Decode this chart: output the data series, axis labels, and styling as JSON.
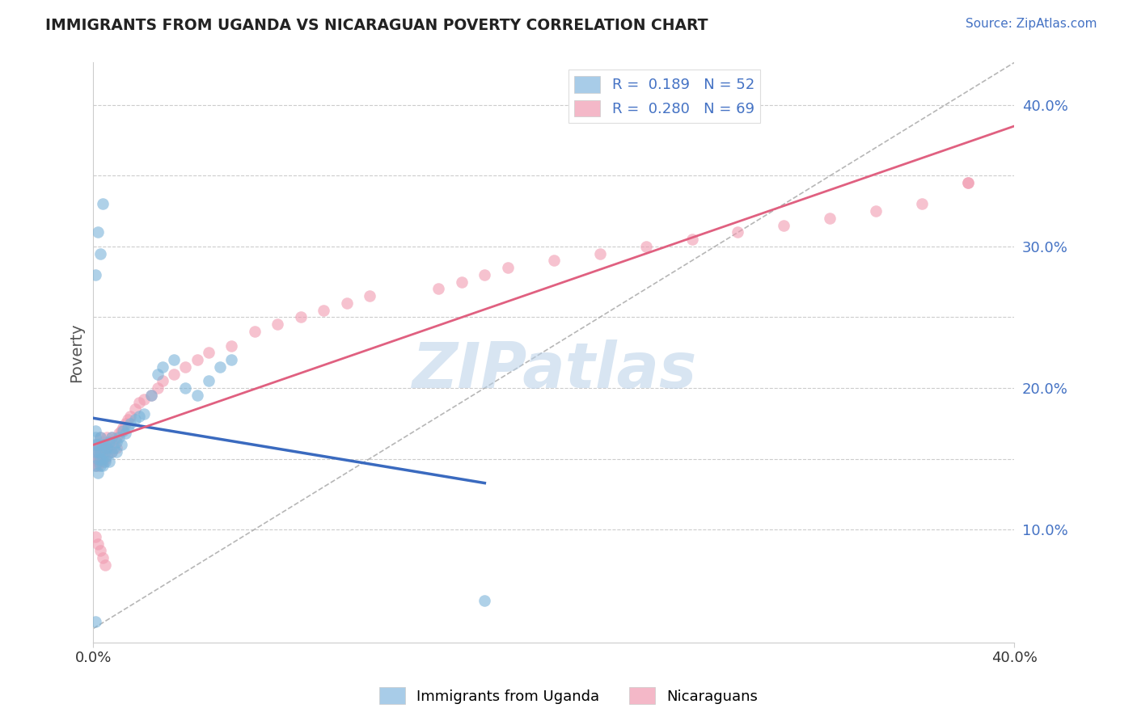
{
  "title": "IMMIGRANTS FROM UGANDA VS NICARAGUAN POVERTY CORRELATION CHART",
  "source": "Source: ZipAtlas.com",
  "ylabel": "Poverty",
  "x_range": [
    0.0,
    0.4
  ],
  "y_range": [
    0.02,
    0.43
  ],
  "watermark": "ZIPatlas",
  "legend_line1": "R =  0.189   N = 52",
  "legend_line2": "R =  0.280   N = 69",
  "series1_color": "#7ab3d9",
  "series2_color": "#f09ab0",
  "series1_line_color": "#3a6abf",
  "series2_line_color": "#e06080",
  "series1_legend_color": "#a8cce8",
  "series2_legend_color": "#f4b8c8",
  "diagonal_line_color": "#aaaaaa",
  "grid_color": "#cccccc",
  "title_color": "#222222",
  "axis_label_color": "#4472c4",
  "background_color": "#ffffff",
  "legend_text_color": "#4472c4",
  "watermark_color": "#b8d0e8",
  "series1_N": 52,
  "series2_N": 69,
  "series1_R": 0.189,
  "series2_R": 0.28,
  "uganda_x": [
    0.001,
    0.001,
    0.001,
    0.001,
    0.001,
    0.002,
    0.002,
    0.002,
    0.002,
    0.003,
    0.003,
    0.003,
    0.003,
    0.004,
    0.004,
    0.004,
    0.005,
    0.005,
    0.005,
    0.006,
    0.006,
    0.007,
    0.007,
    0.008,
    0.008,
    0.009,
    0.01,
    0.01,
    0.011,
    0.012,
    0.013,
    0.014,
    0.015,
    0.016,
    0.018,
    0.02,
    0.022,
    0.025,
    0.028,
    0.03,
    0.035,
    0.04,
    0.045,
    0.05,
    0.055,
    0.06,
    0.001,
    0.002,
    0.003,
    0.004,
    0.17,
    0.001
  ],
  "uganda_y": [
    0.155,
    0.16,
    0.165,
    0.17,
    0.145,
    0.155,
    0.15,
    0.16,
    0.14,
    0.15,
    0.145,
    0.155,
    0.165,
    0.15,
    0.16,
    0.145,
    0.155,
    0.16,
    0.148,
    0.152,
    0.158,
    0.148,
    0.162,
    0.155,
    0.165,
    0.158,
    0.155,
    0.162,
    0.165,
    0.16,
    0.17,
    0.168,
    0.172,
    0.175,
    0.178,
    0.18,
    0.182,
    0.195,
    0.21,
    0.215,
    0.22,
    0.2,
    0.195,
    0.205,
    0.215,
    0.22,
    0.28,
    0.31,
    0.295,
    0.33,
    0.05,
    0.035
  ],
  "nicaraguan_x": [
    0.001,
    0.001,
    0.001,
    0.001,
    0.002,
    0.002,
    0.002,
    0.002,
    0.003,
    0.003,
    0.003,
    0.004,
    0.004,
    0.004,
    0.005,
    0.005,
    0.005,
    0.006,
    0.006,
    0.007,
    0.007,
    0.008,
    0.008,
    0.009,
    0.01,
    0.01,
    0.011,
    0.012,
    0.013,
    0.014,
    0.015,
    0.016,
    0.018,
    0.02,
    0.022,
    0.025,
    0.028,
    0.03,
    0.035,
    0.04,
    0.045,
    0.05,
    0.06,
    0.07,
    0.08,
    0.09,
    0.1,
    0.11,
    0.12,
    0.15,
    0.16,
    0.17,
    0.18,
    0.2,
    0.22,
    0.24,
    0.26,
    0.28,
    0.3,
    0.32,
    0.34,
    0.36,
    0.38,
    0.001,
    0.002,
    0.003,
    0.004,
    0.005,
    0.38
  ],
  "nicaraguan_y": [
    0.15,
    0.145,
    0.155,
    0.16,
    0.148,
    0.152,
    0.158,
    0.145,
    0.155,
    0.15,
    0.165,
    0.148,
    0.158,
    0.162,
    0.155,
    0.16,
    0.15,
    0.158,
    0.165,
    0.155,
    0.162,
    0.155,
    0.165,
    0.16,
    0.158,
    0.165,
    0.168,
    0.17,
    0.172,
    0.175,
    0.178,
    0.18,
    0.185,
    0.19,
    0.192,
    0.195,
    0.2,
    0.205,
    0.21,
    0.215,
    0.22,
    0.225,
    0.23,
    0.24,
    0.245,
    0.25,
    0.255,
    0.26,
    0.265,
    0.27,
    0.275,
    0.28,
    0.285,
    0.29,
    0.295,
    0.3,
    0.305,
    0.31,
    0.315,
    0.32,
    0.325,
    0.33,
    0.345,
    0.095,
    0.09,
    0.085,
    0.08,
    0.075,
    0.345
  ]
}
